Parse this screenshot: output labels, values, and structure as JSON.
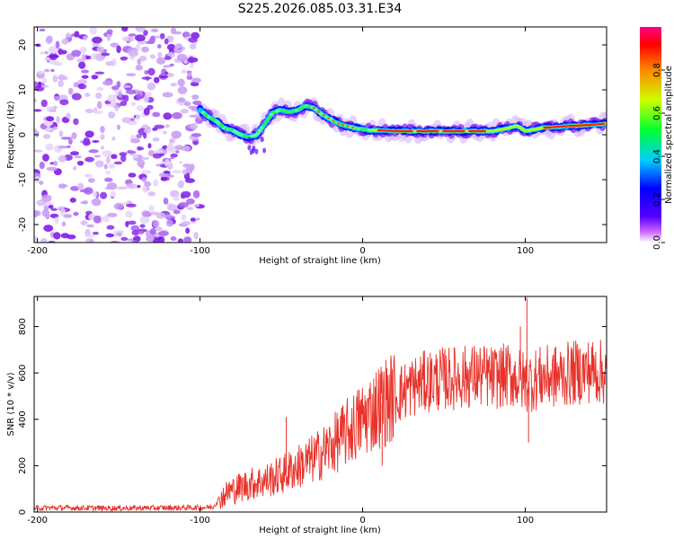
{
  "chart_data": [
    {
      "type": "heatmap",
      "title": "S225.2026.085.03.31.E34",
      "xlabel": "Height of straight line (km)",
      "ylabel": "Frequency (Hz)",
      "xlim": [
        -202,
        150
      ],
      "ylim": [
        -24,
        24
      ],
      "xticks": [
        -200,
        -100,
        0,
        100
      ],
      "yticks": [
        -20,
        -10,
        0,
        10,
        20
      ],
      "ridge": {
        "x": [
          -100,
          -95,
          -90,
          -85,
          -80,
          -75,
          -70,
          -65,
          -60,
          -55,
          -50,
          -45,
          -40,
          -35,
          -30,
          -25,
          -20,
          -15,
          -10,
          -5,
          0,
          5,
          10,
          20,
          40,
          60,
          80,
          90,
          95,
          100,
          110,
          120,
          130,
          140,
          150
        ],
        "y": [
          5.5,
          4,
          3,
          1.5,
          1,
          0,
          -0.5,
          0,
          2.5,
          5,
          5.5,
          5,
          5.5,
          6.5,
          6,
          4.5,
          3.5,
          2.5,
          2,
          1.5,
          1.2,
          1,
          1,
          0.8,
          0.8,
          0.8,
          0.8,
          1.5,
          2,
          0.8,
          1.5,
          1.8,
          2,
          2.2,
          2.5
        ]
      },
      "noise_region_x": [
        -202,
        -100
      ],
      "colorbar": {
        "label": "Normalized spectral amplitude",
        "range": [
          0,
          1
        ],
        "ticks": [
          "0.0",
          "0.2",
          "0.4",
          "0.6",
          "0.8"
        ],
        "ticks_v": [
          0.0,
          0.2,
          0.4,
          0.6,
          0.8
        ]
      }
    },
    {
      "type": "line",
      "xlabel": "Height of straight line (km)",
      "ylabel": "SNR (10 * v/v)",
      "xlim": [
        -202,
        150
      ],
      "ylim": [
        0,
        930
      ],
      "xticks": [
        -200,
        -100,
        0,
        100
      ],
      "yticks": [
        0,
        200,
        400,
        600,
        800
      ],
      "series": [
        {
          "name": "SNR",
          "color": "#e8322a",
          "x": [
            -202,
            -180,
            -160,
            -140,
            -120,
            -100,
            -92,
            -88,
            -80,
            -70,
            -60,
            -50,
            -40,
            -30,
            -20,
            -10,
            -5,
            0,
            5,
            10,
            20,
            30,
            40,
            50,
            60,
            70,
            80,
            90,
            100,
            110,
            120,
            130,
            140,
            150
          ],
          "y": [
            18,
            18,
            17,
            17,
            18,
            19,
            22,
            60,
            95,
            120,
            135,
            160,
            195,
            230,
            280,
            340,
            370,
            400,
            430,
            460,
            500,
            540,
            565,
            575,
            580,
            590,
            580,
            590,
            560,
            580,
            585,
            600,
            610,
            600
          ]
        }
      ],
      "spikes": [
        {
          "x": -82,
          "y": 130
        },
        {
          "x": -47,
          "y": 410
        },
        {
          "x": 12,
          "y": 200
        },
        {
          "x": 97,
          "y": 800
        },
        {
          "x": 101,
          "y": 925
        },
        {
          "x": 102,
          "y": 300
        }
      ]
    }
  ]
}
